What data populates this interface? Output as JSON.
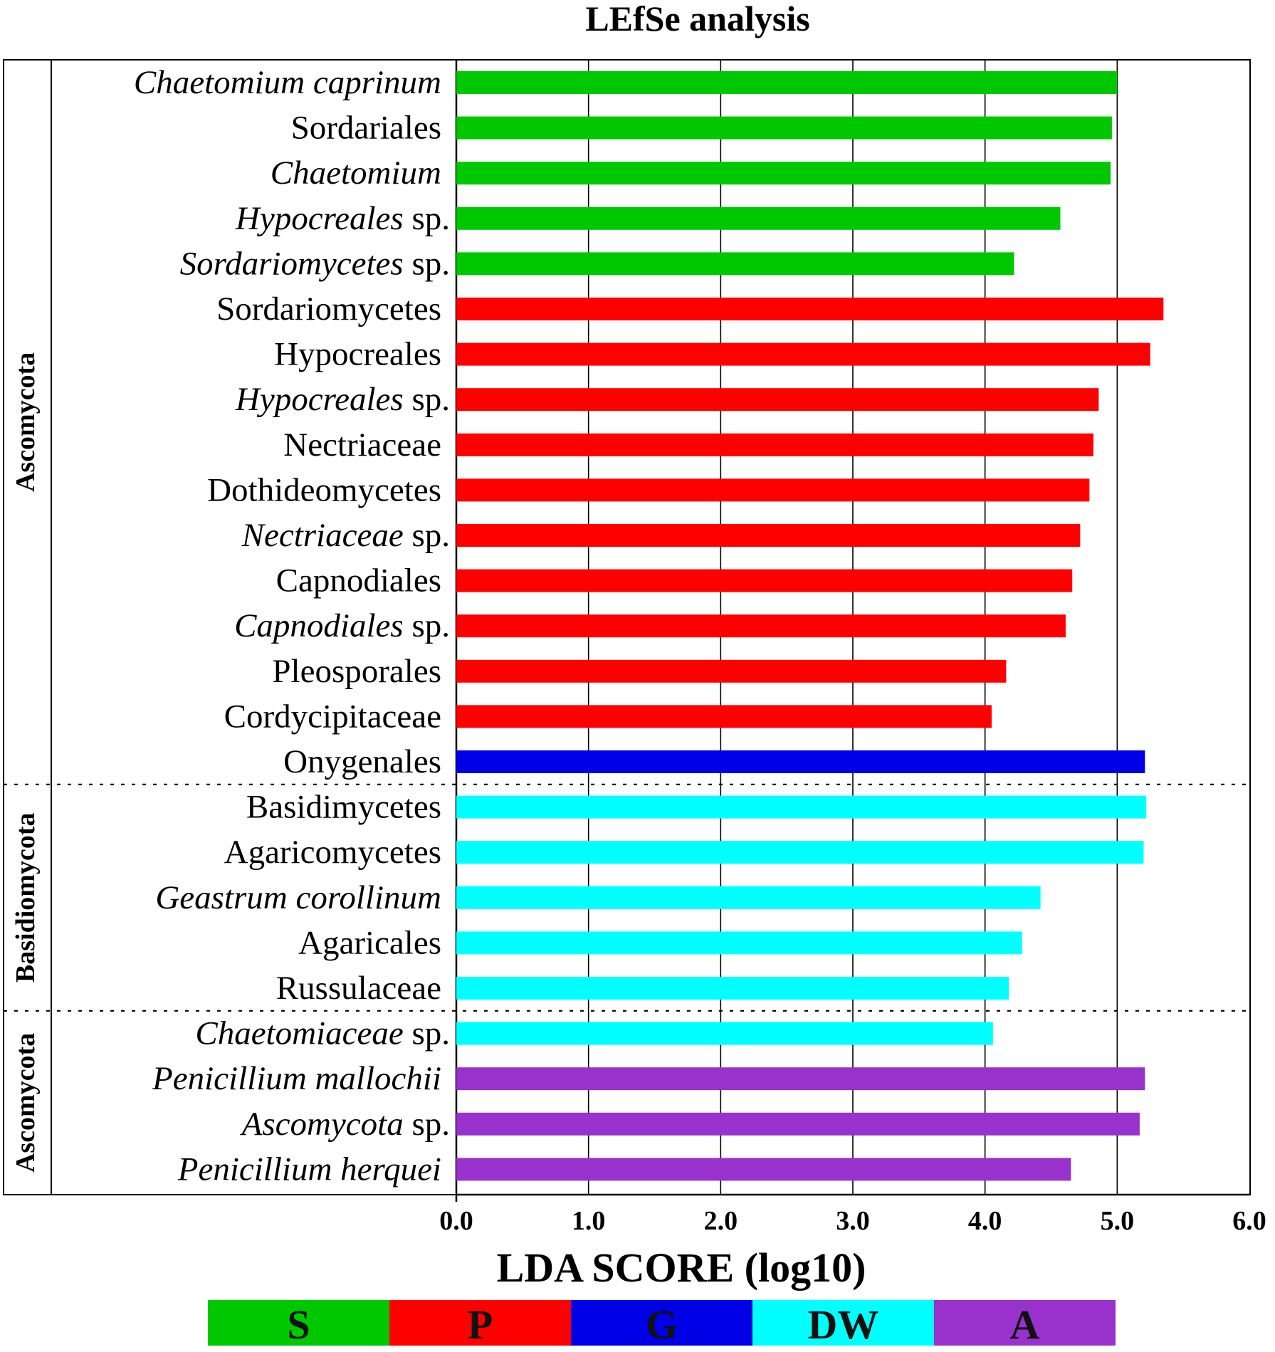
{
  "chart_data": {
    "type": "bar",
    "orientation": "horizontal",
    "title": "LEfSe analysis",
    "xlabel": "LDA SCORE (log10)",
    "xlim": [
      0,
      6
    ],
    "xticks": [
      "0.0",
      "1.0",
      "2.0",
      "3.0",
      "4.0",
      "5.0",
      "6.0"
    ],
    "groups": [
      {
        "key": "S",
        "label": "S",
        "color": "#00c800"
      },
      {
        "key": "P",
        "label": "P",
        "color": "#ff0000"
      },
      {
        "key": "G",
        "label": "G",
        "color": "#0000e6"
      },
      {
        "key": "DW",
        "label": "DW",
        "color": "#00ffff"
      },
      {
        "key": "A",
        "label": "A",
        "color": "#9932cc"
      }
    ],
    "phyla": [
      {
        "name": "Ascomycota",
        "from": 0,
        "to": 15
      },
      {
        "name": "Basidiomycota",
        "from": 16,
        "to": 20
      },
      {
        "name": "Ascomycota",
        "from": 21,
        "to": 24
      }
    ],
    "bars": [
      {
        "label": "Chaetomium caprinum",
        "italic": "Chaetomium caprinum",
        "plain": "",
        "group": "S",
        "value": 5.0
      },
      {
        "label": "Sordariales",
        "italic": "",
        "plain": "Sordariales",
        "group": "S",
        "value": 4.96
      },
      {
        "label": "Chaetomium",
        "italic": "Chaetomium",
        "plain": "",
        "group": "S",
        "value": 4.95
      },
      {
        "label": "Hypocreales sp.",
        "italic": "Hypocreales",
        "plain": " sp.",
        "group": "S",
        "value": 4.57
      },
      {
        "label": "Sordariomycetes sp.",
        "italic": "Sordariomycetes",
        "plain": " sp.",
        "group": "S",
        "value": 4.22
      },
      {
        "label": "Sordariomycetes",
        "italic": "",
        "plain": "Sordariomycetes",
        "group": "P",
        "value": 5.35
      },
      {
        "label": "Hypocreales",
        "italic": "",
        "plain": "Hypocreales",
        "group": "P",
        "value": 5.25
      },
      {
        "label": "Hypocreales sp.",
        "italic": "Hypocreales",
        "plain": " sp.",
        "group": "P",
        "value": 4.86
      },
      {
        "label": "Nectriaceae",
        "italic": "",
        "plain": "Nectriaceae",
        "group": "P",
        "value": 4.82
      },
      {
        "label": "Dothideomycetes",
        "italic": "",
        "plain": "Dothideomycetes",
        "group": "P",
        "value": 4.79
      },
      {
        "label": "Nectriaceae sp.",
        "italic": "Nectriaceae",
        "plain": " sp.",
        "group": "P",
        "value": 4.72
      },
      {
        "label": "Capnodiales",
        "italic": "",
        "plain": "Capnodiales",
        "group": "P",
        "value": 4.66
      },
      {
        "label": "Capnodiales sp.",
        "italic": "Capnodiales",
        "plain": " sp.",
        "group": "P",
        "value": 4.61
      },
      {
        "label": "Pleosporales",
        "italic": "",
        "plain": "Pleosporales",
        "group": "P",
        "value": 4.16
      },
      {
        "label": "Cordycipitaceae",
        "italic": "",
        "plain": "Cordycipitaceae",
        "group": "P",
        "value": 4.05
      },
      {
        "label": "Onygenales",
        "italic": "",
        "plain": "Onygenales",
        "group": "G",
        "value": 5.21
      },
      {
        "label": "Basidimycetes",
        "italic": "",
        "plain": "Basidimycetes",
        "group": "DW",
        "value": 5.22
      },
      {
        "label": "Agaricomycetes",
        "italic": "",
        "plain": "Agaricomycetes",
        "group": "DW",
        "value": 5.2
      },
      {
        "label": "Geastrum corollinum",
        "italic": "Geastrum corollinum",
        "plain": "",
        "group": "DW",
        "value": 4.42
      },
      {
        "label": "Agaricales",
        "italic": "",
        "plain": "Agaricales",
        "group": "DW",
        "value": 4.28
      },
      {
        "label": "Russulaceae",
        "italic": "",
        "plain": "Russulaceae",
        "group": "DW",
        "value": 4.18
      },
      {
        "label": "Chaetomiaceae sp.",
        "italic": "Chaetomiaceae",
        "plain": " sp.",
        "group": "DW",
        "value": 4.06
      },
      {
        "label": "Penicillium mallochii",
        "italic": "Penicillium mallochii",
        "plain": "",
        "group": "A",
        "value": 5.21
      },
      {
        "label": "Ascomycota sp.",
        "italic": "Ascomycota",
        "plain": " sp.",
        "group": "A",
        "value": 5.17
      },
      {
        "label": "Penicillium herquei",
        "italic": "Penicillium herquei",
        "plain": "",
        "group": "A",
        "value": 4.65
      }
    ]
  }
}
